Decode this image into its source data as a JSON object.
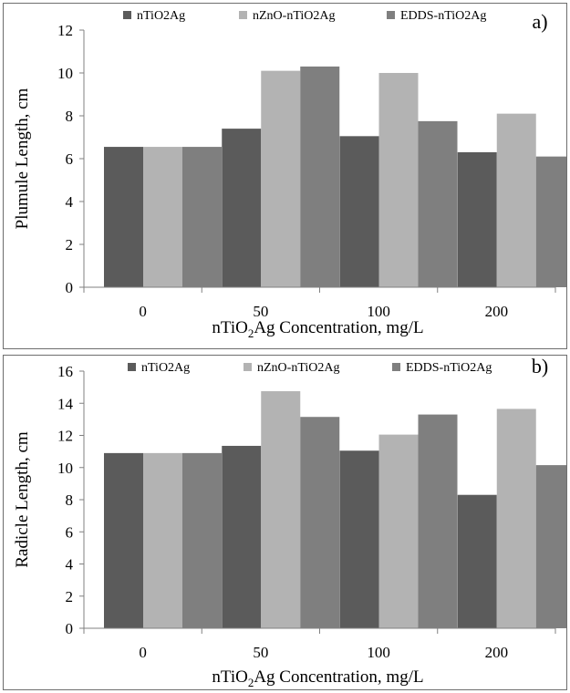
{
  "chart_data": [
    {
      "type": "bar",
      "panel_label": "a)",
      "categories": [
        "0",
        "50",
        "100",
        "200"
      ],
      "series": [
        {
          "name": "nTiO2Ag",
          "values": [
            6.55,
            7.4,
            7.05,
            6.3
          ]
        },
        {
          "name": "nZnO-nTiO2Ag",
          "values": [
            6.55,
            10.1,
            10.0,
            8.1
          ]
        },
        {
          "name": "EDDS-nTiO2Ag",
          "values": [
            6.55,
            10.3,
            7.75,
            6.1
          ]
        }
      ],
      "ylabel": "Plumule Length, cm",
      "xlabel": {
        "prefix": "nTiO",
        "sub": "2",
        "suffix": "Ag Concentration, mg/L"
      },
      "ylim": [
        0,
        12
      ],
      "yticks": [
        0,
        2,
        4,
        6,
        8,
        10,
        12
      ],
      "grid": false,
      "legend": "top"
    },
    {
      "type": "bar",
      "panel_label": "b)",
      "categories": [
        "0",
        "50",
        "100",
        "200"
      ],
      "series": [
        {
          "name": "nTiO2Ag",
          "values": [
            10.9,
            11.35,
            11.05,
            8.3
          ]
        },
        {
          "name": "nZnO-nTiO2Ag",
          "values": [
            10.9,
            14.75,
            12.05,
            13.65
          ]
        },
        {
          "name": "EDDS-nTiO2Ag",
          "values": [
            10.9,
            13.15,
            13.3,
            10.15
          ]
        }
      ],
      "ylabel": "Radicle Length, cm",
      "xlabel": {
        "prefix": "nTiO",
        "sub": "2",
        "suffix": "Ag Concentration, mg/L"
      },
      "ylim": [
        0,
        16
      ],
      "yticks": [
        0,
        2,
        4,
        6,
        8,
        10,
        12,
        14,
        16
      ],
      "grid": false,
      "legend": "top"
    }
  ],
  "colors": {
    "nTiO2Ag": "#5b5b5b",
    "nZnO-nTiO2Ag": "#b3b3b3",
    "EDDS-nTiO2Ag": "#7f7f7f",
    "axis": "#808080"
  }
}
